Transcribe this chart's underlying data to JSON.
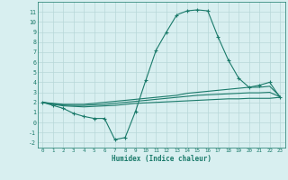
{
  "xlabel": "Humidex (Indice chaleur)",
  "x_values": [
    0,
    1,
    2,
    3,
    4,
    5,
    6,
    7,
    8,
    9,
    10,
    11,
    12,
    13,
    14,
    15,
    16,
    17,
    18,
    19,
    20,
    21,
    22,
    23
  ],
  "line1_y": [
    2,
    1.7,
    1.4,
    0.9,
    0.6,
    0.4,
    0.4,
    -1.7,
    -1.5,
    1.1,
    4.2,
    7.2,
    9.0,
    10.7,
    11.1,
    11.2,
    11.1,
    8.5,
    6.2,
    4.4,
    3.5,
    3.7,
    4.0,
    2.5
  ],
  "line2_y": [
    2,
    1.9,
    1.8,
    1.8,
    1.8,
    1.9,
    2.0,
    2.1,
    2.2,
    2.3,
    2.4,
    2.5,
    2.6,
    2.7,
    2.9,
    3.0,
    3.1,
    3.2,
    3.3,
    3.4,
    3.5,
    3.5,
    3.6,
    2.6
  ],
  "line3_y": [
    2,
    1.85,
    1.75,
    1.7,
    1.7,
    1.75,
    1.8,
    1.9,
    2.0,
    2.1,
    2.2,
    2.3,
    2.4,
    2.5,
    2.6,
    2.7,
    2.75,
    2.8,
    2.85,
    2.9,
    2.95,
    2.95,
    3.0,
    2.55
  ],
  "line4_y": [
    2,
    1.8,
    1.65,
    1.6,
    1.55,
    1.6,
    1.65,
    1.7,
    1.8,
    1.9,
    1.95,
    2.0,
    2.05,
    2.1,
    2.15,
    2.2,
    2.25,
    2.3,
    2.35,
    2.35,
    2.4,
    2.4,
    2.4,
    2.5
  ],
  "line_color": "#1a7a6a",
  "bg_color": "#d8eff0",
  "grid_color": "#b8d8d8",
  "ylim": [
    -2.5,
    12
  ],
  "xlim": [
    -0.5,
    23.5
  ],
  "yticks": [
    -2,
    -1,
    0,
    1,
    2,
    3,
    4,
    5,
    6,
    7,
    8,
    9,
    10,
    11
  ],
  "xticks": [
    0,
    1,
    2,
    3,
    4,
    5,
    6,
    7,
    8,
    9,
    10,
    11,
    12,
    13,
    14,
    15,
    16,
    17,
    18,
    19,
    20,
    21,
    22,
    23
  ]
}
